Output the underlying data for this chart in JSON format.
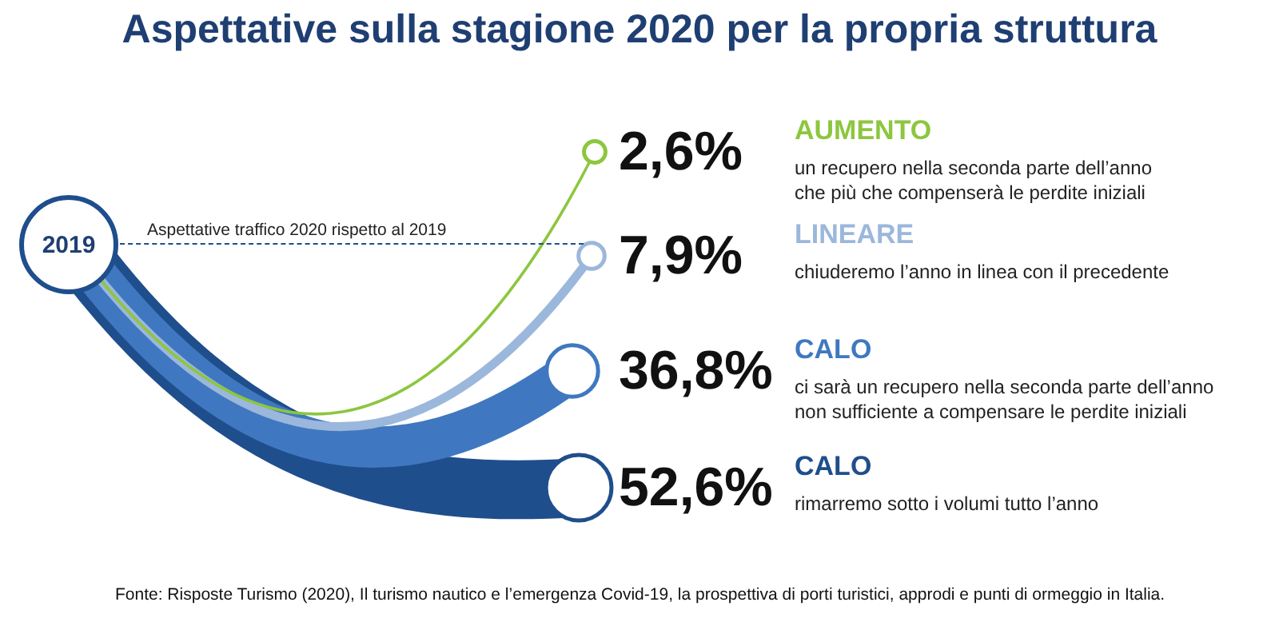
{
  "chart_data": {
    "type": "other",
    "title": "Aspettative sulla stagione 2020 per la propria struttura",
    "categories": [
      "AUMENTO",
      "LINEARE",
      "CALO",
      "CALO"
    ],
    "values": [
      2.6,
      7.9,
      36.8,
      52.6
    ],
    "value_labels": [
      "2,6%",
      "7,9%",
      "36,8%",
      "52,6%"
    ],
    "colors": [
      "#8dc63f",
      "#9bb7dc",
      "#3f78c0",
      "#1f4e8c"
    ],
    "annotations": [
      "un recupero nella seconda parte dell’anno\nche più che compenserà le perdite iniziali",
      "chiuderemo l’anno in linea con il precedente",
      "ci sarà un recupero nella seconda parte dell’anno\nnon sufficiente a compensare le perdite iniziali",
      "rimarremo sotto i volumi tutto l’anno",
      "2019",
      "Aspettative traffico 2020 rispetto al 2019",
      "Fonte: Risposte Turismo (2020), Il turismo nautico e l’emergenza Covid-19, la prospettiva di porti turistici, approdi e punti di ormeggio in Italia."
    ]
  }
}
